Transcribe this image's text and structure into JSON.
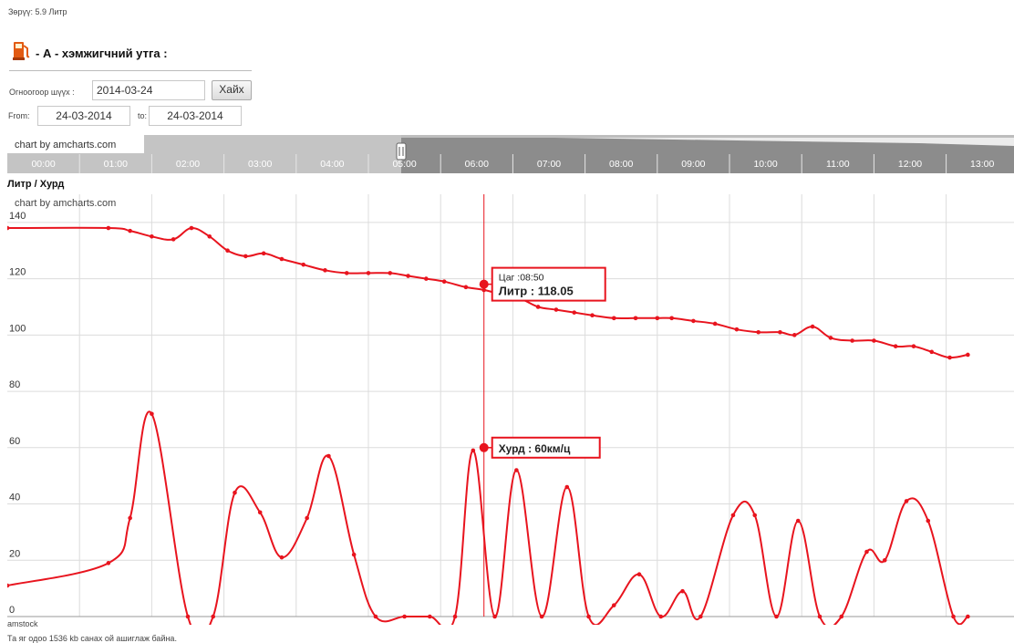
{
  "header": {
    "consumption_text": "Зөрүү: 5.9 Литр",
    "station_title": "- А - хэмжигчний утга :"
  },
  "form": {
    "date_label": "Огноогоор шүүх :",
    "date_value": "2014-03-24",
    "search_button": "Хайх",
    "from_label": "From:",
    "from_value": "24-03-2014",
    "to_label": "to:",
    "to_value": "24-03-2014"
  },
  "navigator": {
    "credit": "chart by amcharts.com",
    "times": [
      "00:00",
      "01:00",
      "02:00",
      "03:00",
      "04:00",
      "05:00",
      "06:00",
      "07:00",
      "08:00",
      "09:00",
      "10:00",
      "11:00",
      "12:00",
      "13:00"
    ]
  },
  "chart_data": {
    "type": "line",
    "title": "Литр / Хурд",
    "credit": "chart by amcharts.com",
    "ylim": [
      0,
      150
    ],
    "yticks": [
      0,
      20,
      40,
      60,
      80,
      100,
      120,
      140
    ],
    "grid": true,
    "series": [
      {
        "name": "Литр",
        "color": "#e8141e",
        "points": [
          [
            0.0,
            138
          ],
          [
            1.4,
            138
          ],
          [
            1.7,
            137
          ],
          [
            2.0,
            135
          ],
          [
            2.3,
            134
          ],
          [
            2.55,
            138
          ],
          [
            2.8,
            135
          ],
          [
            3.05,
            130
          ],
          [
            3.3,
            128
          ],
          [
            3.55,
            129
          ],
          [
            3.8,
            127
          ],
          [
            4.1,
            125
          ],
          [
            4.4,
            123
          ],
          [
            4.7,
            122
          ],
          [
            5.0,
            122
          ],
          [
            5.3,
            122
          ],
          [
            5.55,
            121
          ],
          [
            5.8,
            120
          ],
          [
            6.05,
            119
          ],
          [
            6.35,
            117
          ],
          [
            6.6,
            116
          ],
          [
            6.9,
            114
          ],
          [
            7.1,
            113
          ],
          [
            7.35,
            110
          ],
          [
            7.6,
            109
          ],
          [
            7.85,
            108
          ],
          [
            8.1,
            107
          ],
          [
            8.4,
            106
          ],
          [
            8.7,
            106
          ],
          [
            9.0,
            106
          ],
          [
            9.2,
            106
          ],
          [
            9.5,
            105
          ],
          [
            9.8,
            104
          ],
          [
            10.1,
            102
          ],
          [
            10.4,
            101
          ],
          [
            10.7,
            101
          ],
          [
            10.9,
            100
          ],
          [
            11.15,
            103
          ],
          [
            11.4,
            99
          ],
          [
            11.7,
            98
          ],
          [
            12.0,
            98
          ],
          [
            12.3,
            96
          ],
          [
            12.55,
            96
          ],
          [
            12.8,
            94
          ],
          [
            13.05,
            92
          ],
          [
            13.3,
            93
          ]
        ],
        "dots": true
      },
      {
        "name": "Хурд",
        "color": "#e8141e",
        "points": [
          [
            0.0,
            11
          ],
          [
            1.4,
            19
          ],
          [
            1.7,
            35
          ],
          [
            2.0,
            72
          ],
          [
            2.5,
            0
          ],
          [
            2.85,
            0
          ],
          [
            3.15,
            44
          ],
          [
            3.5,
            37
          ],
          [
            3.8,
            21
          ],
          [
            4.15,
            35
          ],
          [
            4.45,
            57
          ],
          [
            4.8,
            22
          ],
          [
            5.1,
            0
          ],
          [
            5.5,
            0
          ],
          [
            5.85,
            0
          ],
          [
            6.2,
            0
          ],
          [
            6.45,
            59
          ],
          [
            6.75,
            0
          ],
          [
            7.05,
            52
          ],
          [
            7.4,
            0
          ],
          [
            7.75,
            46
          ],
          [
            8.05,
            0
          ],
          [
            8.4,
            4
          ],
          [
            8.75,
            15
          ],
          [
            9.05,
            0
          ],
          [
            9.35,
            9
          ],
          [
            9.6,
            0
          ],
          [
            10.05,
            36
          ],
          [
            10.35,
            36
          ],
          [
            10.65,
            0
          ],
          [
            10.95,
            34
          ],
          [
            11.25,
            0
          ],
          [
            11.55,
            0
          ],
          [
            11.9,
            23
          ],
          [
            12.15,
            20
          ],
          [
            12.45,
            41
          ],
          [
            12.75,
            34
          ],
          [
            13.1,
            0
          ],
          [
            13.3,
            0
          ]
        ],
        "dots": true
      }
    ],
    "cursor": {
      "time_label": "Цаг :08:50",
      "value_label": "Литр : 118.05",
      "speed_label": "Хурд : 60км/ц"
    }
  },
  "footer": {
    "brand": "amstock",
    "memory_text": "Та яг одоо 1536 kb санах ой ашиглаж байна."
  },
  "colors": {
    "line": "#e8141e",
    "navigator_dark": "#8c8c8c",
    "navigator_light": "#c4c4c4"
  }
}
